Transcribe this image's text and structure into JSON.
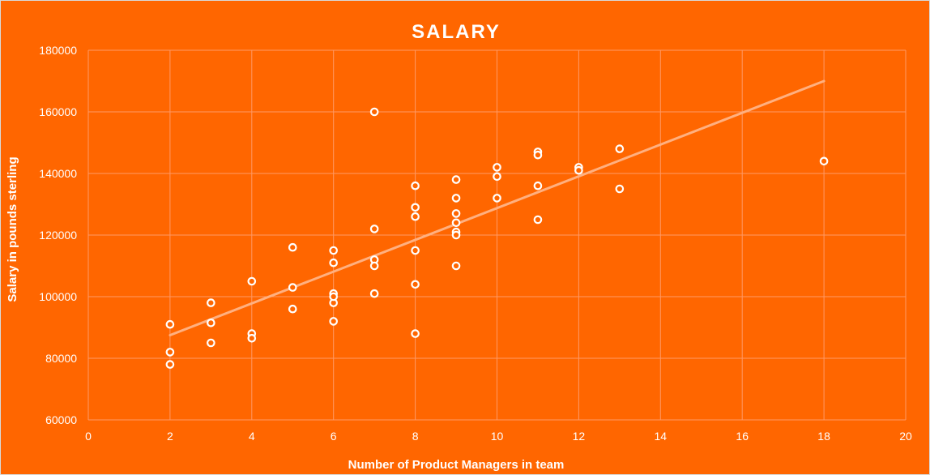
{
  "chart_data": {
    "type": "scatter",
    "title": "SALARY",
    "xlabel": "Number of Product Managers in team",
    "ylabel": "Salary in pounds sterling",
    "xlim": [
      0,
      20
    ],
    "ylim": [
      60000,
      180000
    ],
    "xticks": [
      "0",
      "2",
      "4",
      "6",
      "8",
      "10",
      "12",
      "14",
      "16",
      "18",
      "20"
    ],
    "yticks": [
      "60000",
      "80000",
      "100000",
      "120000",
      "140000",
      "160000",
      "180000"
    ],
    "grid": true,
    "trendline": {
      "x": [
        2,
        18
      ],
      "y": [
        87500,
        170000
      ]
    },
    "colors": {
      "background": "#FF6600",
      "gridline": "#FF9966",
      "marker_fill": "#FF6600",
      "marker_edge": "#FFFFFF",
      "trendline": "#FFB080"
    },
    "series": [
      {
        "x": [
          2,
          2,
          2,
          3,
          3,
          3,
          4,
          4,
          4,
          5,
          5,
          5,
          6,
          6,
          6,
          6,
          6,
          6,
          7,
          7,
          7,
          7,
          7,
          8,
          8,
          8,
          8,
          8,
          8,
          9,
          9,
          9,
          9,
          9,
          9,
          9,
          10,
          10,
          10,
          11,
          11,
          11,
          11,
          12,
          12,
          13,
          13,
          18
        ],
        "y": [
          91000,
          82000,
          78000,
          98000,
          91500,
          85000,
          105000,
          88000,
          86500,
          116000,
          103000,
          96000,
          115000,
          111000,
          101000,
          98000,
          92000,
          100000,
          160000,
          122000,
          112000,
          110000,
          101000,
          136000,
          129000,
          126000,
          115000,
          104000,
          88000,
          138000,
          132000,
          127000,
          124000,
          121000,
          120000,
          110000,
          142000,
          139000,
          132000,
          147000,
          146000,
          136000,
          125000,
          142000,
          141000,
          148000,
          135000,
          144000
        ]
      }
    ]
  }
}
